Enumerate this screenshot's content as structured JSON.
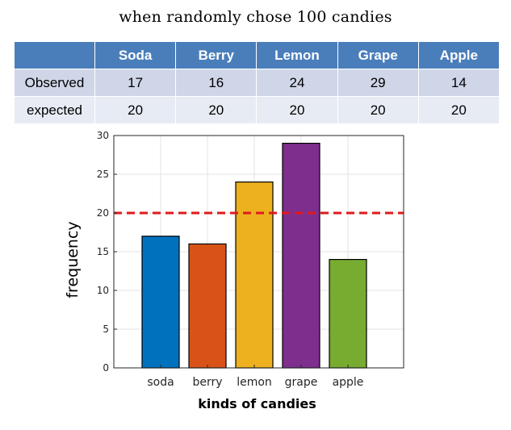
{
  "title": "when randomly chose 100 candies",
  "table": {
    "headers": [
      "",
      "Soda",
      "Berry",
      "Lemon",
      "Grape",
      "Apple"
    ],
    "rows": [
      {
        "label": "Observed",
        "values": [
          "17",
          "16",
          "24",
          "29",
          "14"
        ]
      },
      {
        "label": "expected",
        "values": [
          "20",
          "20",
          "20",
          "20",
          "20"
        ]
      }
    ]
  },
  "chart_data": {
    "type": "bar",
    "categories": [
      "soda",
      "berry",
      "lemon",
      "grape",
      "apple"
    ],
    "values": [
      17,
      16,
      24,
      29,
      14
    ],
    "colors": [
      "#0072bd",
      "#d95319",
      "#edb120",
      "#7e2f8e",
      "#77ac30"
    ],
    "expected_line": {
      "value": 20,
      "color": "#e0191b",
      "style": "dashed"
    },
    "xlabel": "kinds of candies",
    "ylabel": "frequency",
    "ylim": [
      0,
      30
    ],
    "yticks": [
      0,
      5,
      10,
      15,
      20,
      25,
      30
    ],
    "grid": true
  }
}
